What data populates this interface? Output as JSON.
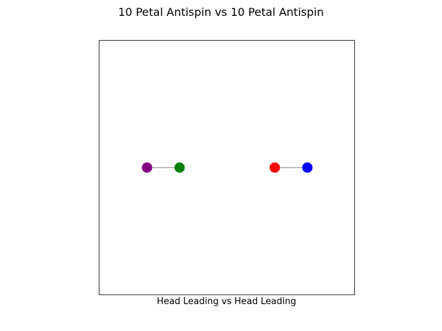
{
  "chart_data": {
    "type": "scatter",
    "title": "10 Petal Antispin vs 10 Petal Antispin",
    "xlabel": "Head Leading vs Head Leading",
    "ylabel": "",
    "xlim": [
      -2.0,
      2.0
    ],
    "ylim": [
      -2.0,
      2.0
    ],
    "grid": false,
    "ticks_visible": false,
    "links": [
      {
        "from": {
          "x": -1.25,
          "y": 0.0,
          "color": "#800080"
        },
        "to": {
          "x": -0.74,
          "y": 0.0,
          "color": "#008000"
        }
      },
      {
        "from": {
          "x": 0.75,
          "y": 0.0,
          "color": "#ff0000"
        },
        "to": {
          "x": 1.26,
          "y": 0.0,
          "color": "#0000ff"
        }
      }
    ],
    "link_color": "#000000"
  }
}
